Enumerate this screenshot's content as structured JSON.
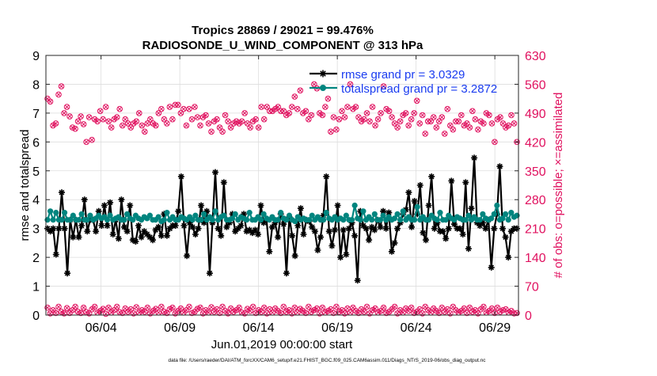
{
  "chart_data": {
    "type": "line",
    "title": "Tropics 28869 / 29021 = 99.476%",
    "subtitle": "RADIOSONDE_U_WIND_COMPONENT @ 313 hPa",
    "xlabel": "Jun.01,2019 00:00:00 start",
    "ylabel": "rmse and totalspread",
    "y2label": "# of obs: o=possible; ×=assimilated",
    "footer": "data file: /Users/raeder/DAI/ATM_forcXX/CAM6_setup/f.e21.FHIST_BGC.f09_025.CAM6assim.011/Diags_NTrS_2019-06/obs_diag_output.nc",
    "xlim": [
      0.5,
      30.5
    ],
    "ylim": [
      0,
      9
    ],
    "y2lim": [
      0,
      630
    ],
    "x_ticks": [
      4,
      9,
      14,
      19,
      24,
      29
    ],
    "x_tick_labels": [
      "06/04",
      "06/09",
      "06/14",
      "06/19",
      "06/24",
      "06/29"
    ],
    "y_ticks": [
      0,
      1,
      2,
      3,
      4,
      5,
      6,
      7,
      8,
      9
    ],
    "y2_ticks": [
      0,
      70,
      140,
      210,
      280,
      350,
      420,
      490,
      560,
      630
    ],
    "legend_position": "top-right",
    "colors": {
      "rmse": "#000000",
      "spread": "#00857f",
      "obs": "#e0115f",
      "legend_text": "#1a3cf0",
      "grid": "#dddddd",
      "axis": "#262626"
    },
    "series": [
      {
        "name": "rmse grand pr = 3.0329",
        "marker": "star",
        "values": [
          3.0,
          2.9,
          3.0,
          2.1,
          3.0,
          4.25,
          3.0,
          1.45,
          3.3,
          2.7,
          3.3,
          2.7,
          3.1,
          4.0,
          2.9,
          3.3,
          3.3,
          2.9,
          3.6,
          3.1,
          3.8,
          3.1,
          3.9,
          2.8,
          3.3,
          2.65,
          4.0,
          3.05,
          2.9,
          3.8,
          2.6,
          2.55,
          3.1,
          2.7,
          2.9,
          2.8,
          2.7,
          2.6,
          2.95,
          3.05,
          2.75,
          3.5,
          2.75,
          3.0,
          3.1,
          3.1,
          3.6,
          4.8,
          3.1,
          2.05,
          3.2,
          3.05,
          2.8,
          3.0,
          3.8,
          3.2,
          3.6,
          1.45,
          3.2,
          4.95,
          3.0,
          2.75,
          4.6,
          3.05,
          3.2,
          3.5,
          2.9,
          3.0,
          3.1,
          3.5,
          2.9,
          2.95,
          2.85,
          2.95,
          2.8,
          3.8,
          3.2,
          3.3,
          2.2,
          3.05,
          3.2,
          2.7,
          3.5,
          3.15,
          1.45,
          3.4,
          2.75,
          2.05,
          3.1,
          3.7,
          2.8,
          3.3,
          3.25,
          3.05,
          2.9,
          2.25,
          2.7,
          3.45,
          4.8,
          2.9,
          2.4,
          2.95,
          3.8,
          2.0,
          2.95,
          2.1,
          3.0,
          3.2,
          2.75,
          1.2,
          3.6,
          3.1,
          3.0,
          2.6,
          3.05,
          2.95,
          3.3,
          3.05,
          3.6,
          3.0,
          3.55,
          2.2,
          2.5,
          3.0,
          3.2,
          3.5,
          3.65,
          4.25,
          3.05,
          3.95,
          3.5,
          4.5,
          2.85,
          2.6,
          3.8,
          4.8,
          3.0,
          3.2,
          2.9,
          2.9,
          2.65,
          3.0,
          4.65,
          3.15,
          3.0,
          3.0,
          2.8,
          4.6,
          2.3,
          3.7,
          5.45,
          3.2,
          3.1,
          3.2,
          3.0,
          3.3,
          1.65,
          3.0,
          3.5,
          5.15,
          3.0,
          2.7,
          2.0,
          2.9,
          3.0,
          3.0
        ]
      },
      {
        "name": "totalspread grand pr = 3.2872",
        "marker": "circle",
        "values": [
          3.3,
          3.6,
          3.3,
          3.55,
          3.3,
          3.3,
          3.55,
          3.3,
          3.3,
          3.45,
          3.3,
          3.3,
          3.5,
          3.3,
          3.3,
          3.45,
          3.3,
          3.35,
          3.45,
          3.35,
          3.4,
          3.3,
          3.45,
          3.3,
          3.35,
          3.4,
          3.3,
          3.3,
          3.5,
          3.35,
          3.3,
          3.45,
          3.35,
          3.3,
          3.4,
          3.35,
          3.45,
          3.3,
          3.3,
          3.4,
          3.25,
          3.3,
          3.55,
          3.3,
          3.4,
          3.3,
          3.3,
          3.4,
          3.35,
          3.3,
          3.4,
          3.3,
          3.45,
          3.3,
          3.3,
          3.5,
          3.3,
          3.4,
          3.3,
          3.6,
          3.3,
          3.4,
          3.45,
          3.3,
          3.3,
          3.35,
          3.5,
          3.3,
          3.4,
          3.35,
          3.3,
          3.55,
          3.3,
          3.3,
          3.4,
          3.3,
          3.5,
          3.35,
          3.3,
          3.4,
          3.3,
          3.3,
          3.55,
          3.35,
          3.3,
          3.45,
          3.3,
          3.25,
          3.4,
          3.3,
          3.35,
          3.3,
          3.3,
          3.45,
          3.3,
          3.4,
          3.3,
          3.3,
          3.55,
          3.35,
          3.3,
          3.4,
          3.3,
          3.35,
          3.3,
          3.45,
          3.3,
          3.3,
          3.8,
          3.35,
          3.3,
          3.6,
          3.3,
          3.4,
          3.3,
          3.5,
          3.3,
          3.3,
          3.45,
          3.3,
          3.4,
          3.3,
          3.35,
          3.5,
          3.3,
          3.6,
          3.3,
          3.4,
          3.3,
          3.3,
          3.75,
          3.3,
          3.4,
          3.3,
          3.3,
          3.45,
          3.35,
          3.3,
          3.55,
          3.3,
          3.3,
          3.45,
          3.35,
          3.3,
          3.4,
          3.35,
          3.3,
          3.3,
          3.45,
          3.3,
          3.4,
          3.3,
          3.3,
          3.5,
          3.35,
          3.3,
          3.35,
          3.5,
          3.8,
          3.3,
          3.35,
          3.5,
          3.3,
          3.55,
          3.4,
          3.45
        ]
      }
    ],
    "obs_possible_high": [
      525,
      518,
      460,
      465,
      535,
      555,
      490,
      505,
      482,
      455,
      452,
      470,
      482,
      463,
      420,
      480,
      425,
      475,
      470,
      495,
      475,
      505,
      470,
      455,
      475,
      480,
      500,
      460,
      475,
      465,
      455,
      465,
      470,
      490,
      460,
      445,
      465,
      475,
      465,
      460,
      490,
      500,
      475,
      465,
      505,
      475,
      510,
      510,
      490,
      500,
      460,
      500,
      475,
      505,
      480,
      460,
      480,
      485,
      465,
      445,
      470,
      475,
      455,
      445,
      485,
      470,
      455,
      465,
      470,
      465,
      470,
      490,
      465,
      455,
      470,
      475,
      455,
      505,
      475,
      505,
      495,
      495,
      500,
      505,
      495,
      495,
      485,
      490,
      505,
      530,
      500,
      545,
      490,
      495,
      475,
      485,
      560,
      550,
      490,
      485,
      505,
      525,
      445,
      480,
      450,
      475,
      495,
      480,
      505,
      560,
      500,
      505,
      480,
      470,
      475,
      490,
      470,
      505,
      460,
      475,
      490,
      555,
      500,
      495,
      480,
      465,
      455,
      470,
      485,
      490,
      460,
      475,
      490,
      520,
      465,
      485,
      440,
      470,
      470,
      480,
      455,
      470,
      480,
      440,
      500,
      460,
      450,
      470,
      470,
      485,
      460,
      465,
      455,
      495,
      475,
      450,
      470,
      465,
      490,
      485,
      465,
      420,
      475,
      480,
      465,
      455,
      460,
      485,
      465,
      420
    ],
    "obs_possible_low": [
      18,
      4,
      12,
      5,
      20,
      8,
      4,
      17,
      5,
      12,
      20,
      8,
      5,
      18,
      7,
      4,
      14,
      20,
      6,
      10,
      15,
      3,
      18,
      6,
      12,
      20,
      7,
      5,
      16,
      8,
      14,
      4,
      19,
      6,
      12,
      8,
      18,
      4,
      10,
      15,
      6,
      20,
      8,
      5,
      14,
      18,
      4,
      10,
      16,
      6,
      12,
      20,
      5,
      8,
      15,
      18,
      4,
      12,
      6,
      19,
      8,
      14,
      5,
      20,
      10,
      4,
      16,
      8,
      12,
      18,
      6,
      4,
      15,
      10,
      20,
      5,
      12,
      8,
      18,
      4,
      14,
      6,
      16,
      10,
      5,
      20,
      8,
      12,
      4,
      18,
      6,
      15,
      10,
      5,
      20,
      8,
      12,
      16,
      4,
      18,
      6,
      10,
      14,
      5,
      20,
      8,
      12,
      4,
      16,
      6,
      18,
      10,
      5,
      14,
      8,
      20,
      4,
      12,
      16,
      6,
      10,
      18,
      5,
      8,
      14,
      20,
      4,
      12,
      6,
      16,
      10,
      18,
      5,
      8,
      14,
      4,
      20,
      12,
      6,
      16,
      10,
      5,
      18,
      8,
      14,
      4,
      20,
      12,
      6,
      10,
      16,
      5,
      18,
      8,
      12,
      4,
      14,
      20,
      6,
      10,
      16,
      5,
      18,
      8,
      12,
      14,
      6,
      10,
      4,
      5
    ]
  }
}
